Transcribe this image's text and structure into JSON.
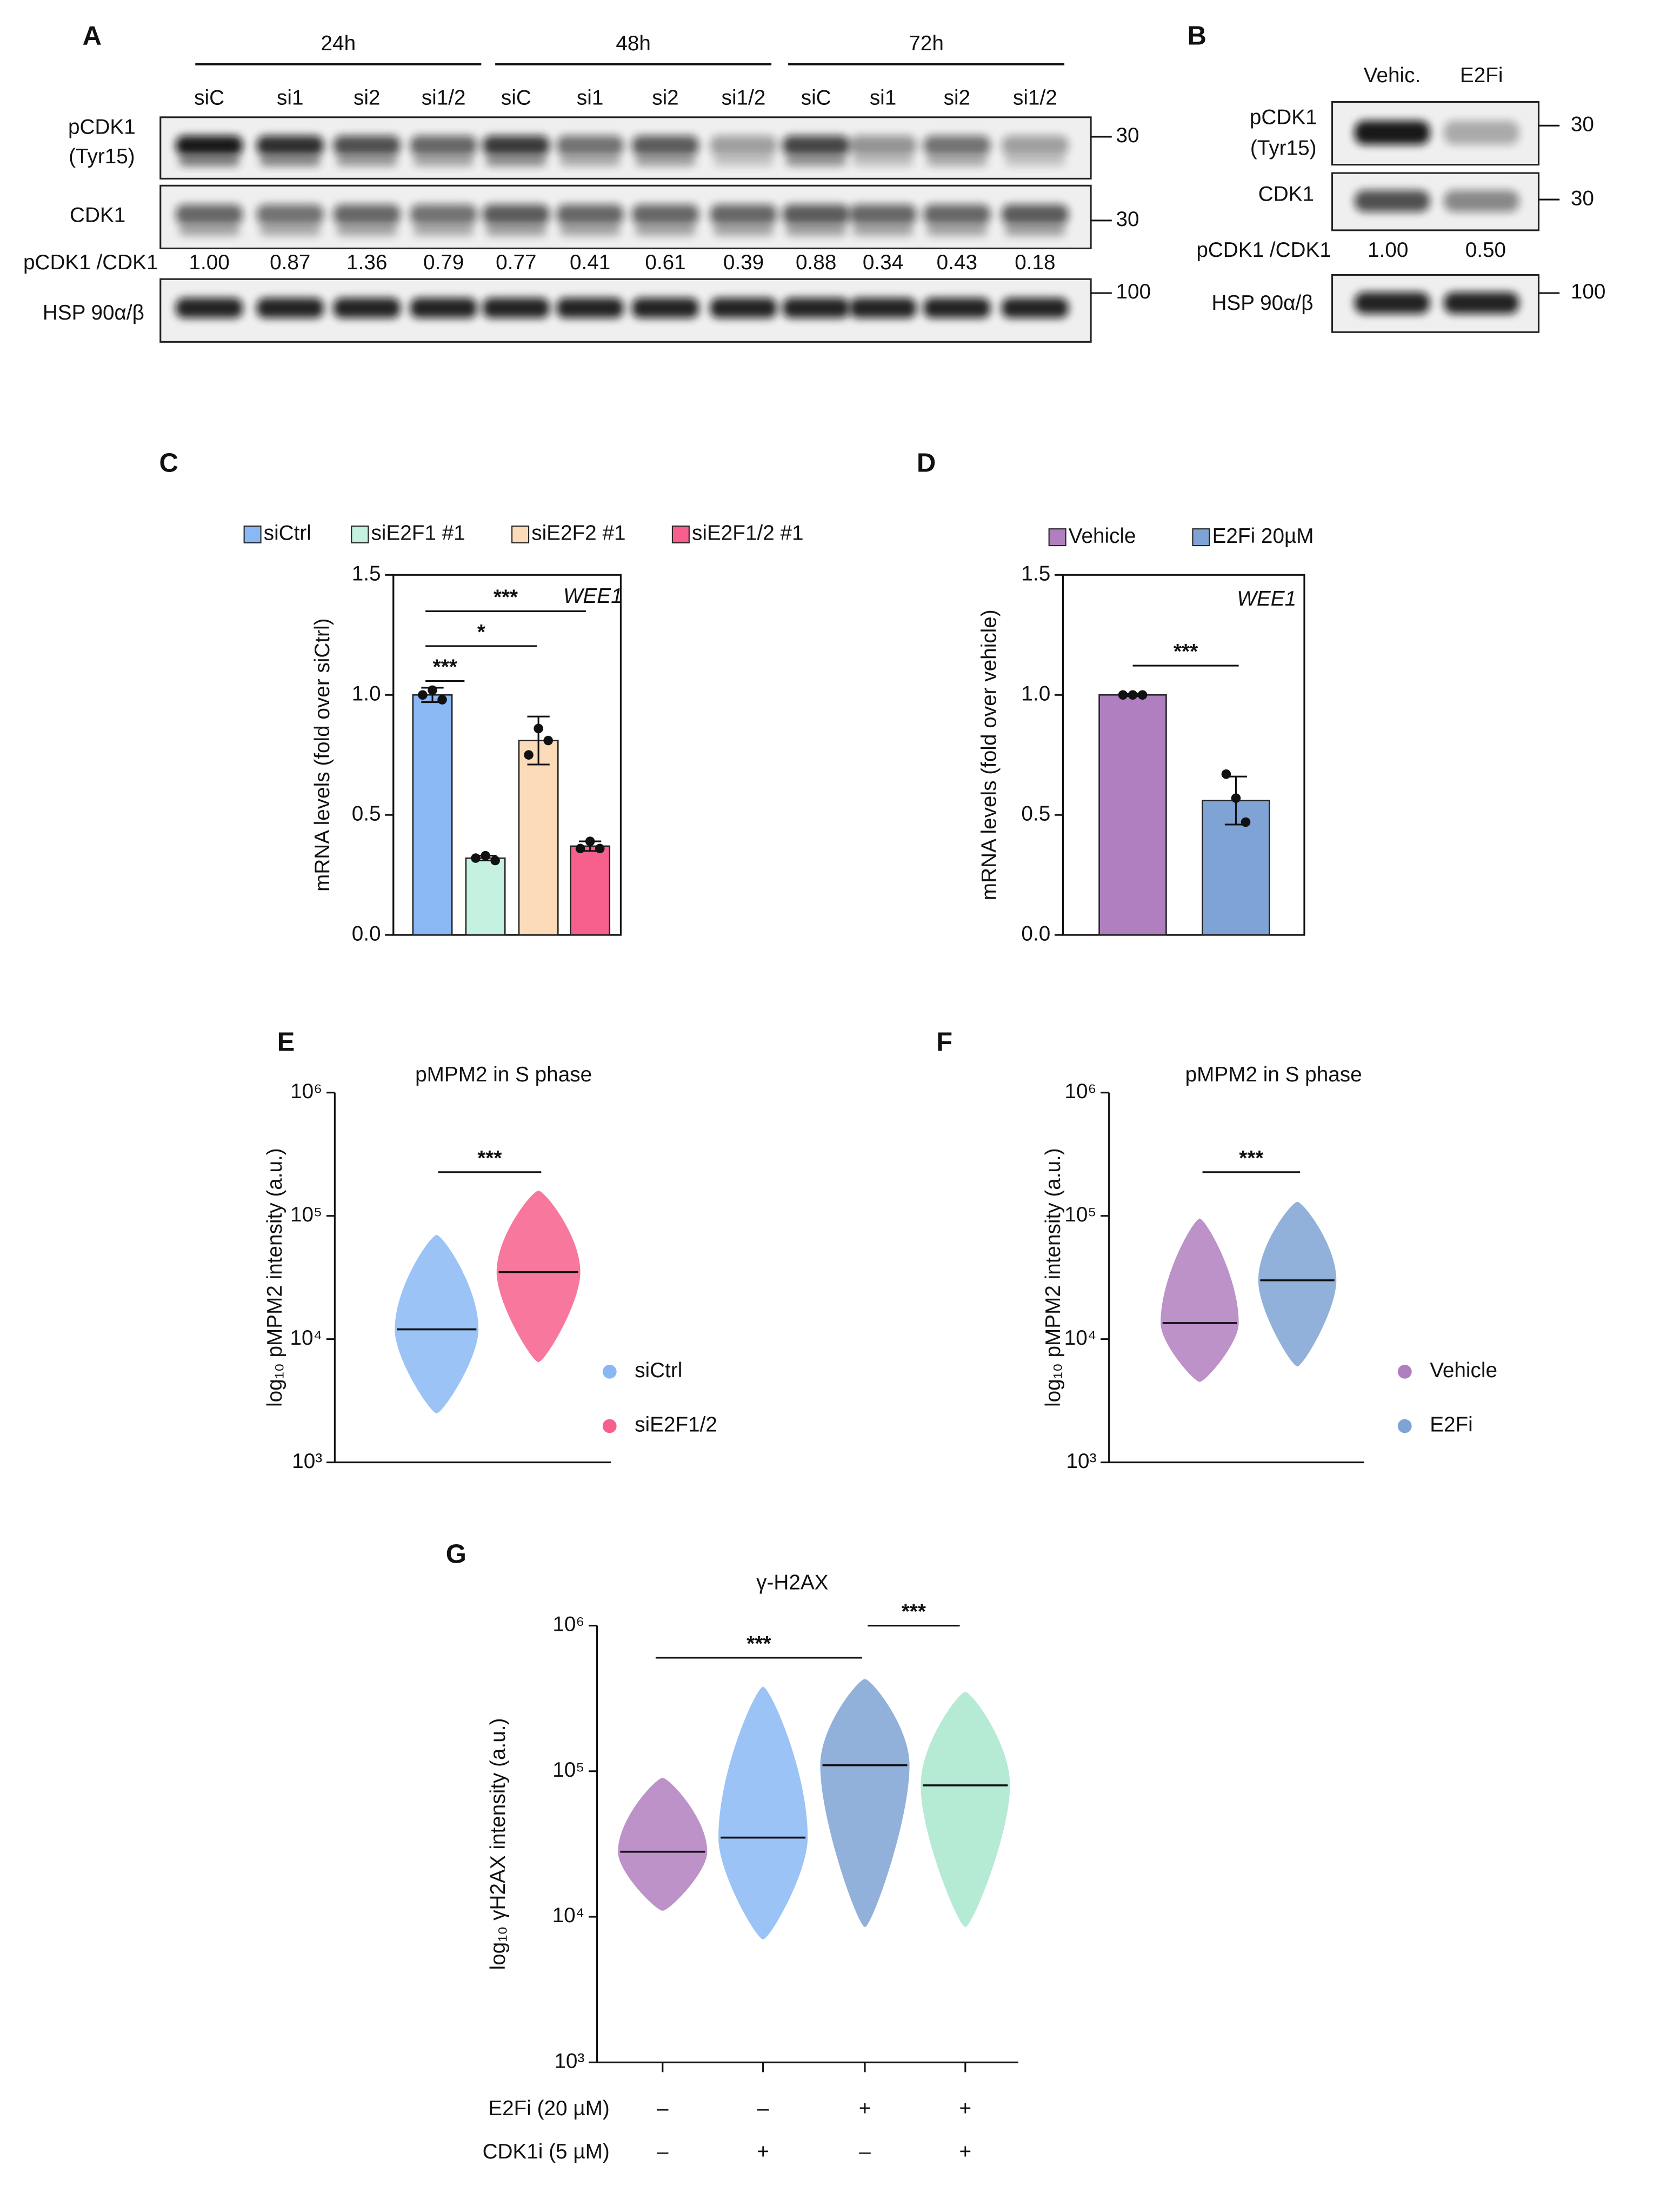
{
  "panel_labels": [
    "A",
    "B",
    "C",
    "D",
    "E",
    "F",
    "G"
  ],
  "blot_a": {
    "time_points": [
      "24h",
      "48h",
      "72h"
    ],
    "lanes": [
      "siC",
      "si1",
      "si2",
      "si1/2",
      "siC",
      "si1",
      "si2",
      "si1/2",
      "siC",
      "si1",
      "si2",
      "si1/2"
    ],
    "row_labels": [
      [
        "pCDK1",
        "(Tyr15)"
      ],
      [
        "CDK1"
      ],
      [
        "pCDK1 /CDK1"
      ],
      [
        "HSP 90α/β"
      ]
    ],
    "ratios": [
      "1.00",
      "0.87",
      "1.36",
      "0.79",
      "0.77",
      "0.41",
      "0.61",
      "0.39",
      "0.88",
      "0.34",
      "0.43",
      "0.18"
    ],
    "markers": [
      "30",
      "30",
      "100"
    ]
  },
  "blot_b": {
    "lanes": [
      "Vehic.",
      "E2Fi"
    ],
    "row_labels": [
      [
        "pCDK1",
        "(Tyr15)"
      ],
      [
        "CDK1"
      ],
      [
        "pCDK1 /CDK1"
      ],
      [
        "HSP 90α/β"
      ]
    ],
    "ratios": [
      "1.00",
      "0.50"
    ],
    "markers": [
      "30",
      "30",
      "100"
    ]
  },
  "chart_data": [
    {
      "type": "bar",
      "categories": [
        "siCtrl",
        "siE2F1 #1",
        "siE2F2 #1",
        "siE2F1/2 #1"
      ],
      "values": [
        1.0,
        0.32,
        0.81,
        0.37
      ],
      "errors": [
        0.03,
        0.01,
        0.1,
        0.02
      ],
      "points": [
        [
          1.0,
          1.02,
          0.98
        ],
        [
          0.32,
          0.33,
          0.31
        ],
        [
          0.75,
          0.86,
          0.81
        ],
        [
          0.36,
          0.39,
          0.36
        ]
      ],
      "colors": [
        "#8ab8f5",
        "#c5f2e0",
        "#fcdcb8",
        "#f7608c"
      ],
      "ylabel": "mRNA levels (fold over siCtrl)",
      "annotation": "WEE1",
      "significance": [
        "***",
        "*",
        "***"
      ],
      "ylim": [
        0,
        1.5
      ],
      "yticks": [
        {
          "value": 0,
          "label": "0.0"
        },
        {
          "value": 0.5,
          "label": "0.5"
        },
        {
          "value": 1,
          "label": "1.0"
        },
        {
          "value": 1.5,
          "label": "1.5"
        }
      ],
      "legend": "top"
    },
    {
      "type": "bar",
      "categories": [
        "Vehicle",
        "E2Fi 20µM"
      ],
      "values": [
        1.0,
        0.56
      ],
      "errors": [
        0.005,
        0.1
      ],
      "points": [
        [
          1.0,
          1.0,
          1.0
        ],
        [
          0.67,
          0.57,
          0.47
        ]
      ],
      "colors": [
        "#b07fc0",
        "#7fa3d4"
      ],
      "ylabel": "mRNA levels (fold over vehicle)",
      "annotation": "WEE1",
      "significance": [
        "***"
      ],
      "ylim": [
        0,
        1.5
      ],
      "yticks": [
        {
          "value": 0,
          "label": "0.0"
        },
        {
          "value": 0.5,
          "label": "0.5"
        },
        {
          "value": 1,
          "label": "1.0"
        },
        {
          "value": 1.5,
          "label": "1.5"
        }
      ],
      "legend": "top"
    },
    {
      "type": "swarm",
      "title": "pMPM2 in S phase",
      "ylabel": "log₁₀ pMPM2 intensity (a.u.)",
      "log_scale": true,
      "series": [
        {
          "name": "siCtrl",
          "color": "#8ab8f5",
          "median": 12000,
          "min": 2500,
          "max": 70000
        },
        {
          "name": "siE2F1/2",
          "color": "#f7608c",
          "median": 35000,
          "min": 6500,
          "max": 160000
        }
      ],
      "significance": [
        "***"
      ],
      "ylim": [
        1000,
        1000000
      ],
      "yticks": [
        {
          "value": 1000,
          "label": "10³"
        },
        {
          "value": 10000,
          "label": "10⁴"
        },
        {
          "value": 100000,
          "label": "10⁵"
        },
        {
          "value": 1000000,
          "label": "10⁶"
        }
      ],
      "legend": "right"
    },
    {
      "type": "swarm",
      "title": "pMPM2 in S phase",
      "ylabel": "log₁₀ pMPM2 intensity (a.u.)",
      "log_scale": true,
      "series": [
        {
          "name": "Vehicle",
          "color": "#b07fc0",
          "median": 13500,
          "min": 4500,
          "max": 95000
        },
        {
          "name": "E2Fi",
          "color": "#7fa3d4",
          "median": 30000,
          "min": 6000,
          "max": 130000
        }
      ],
      "significance": [
        "***"
      ],
      "ylim": [
        1000,
        1000000
      ],
      "yticks": [
        {
          "value": 1000,
          "label": "10³"
        },
        {
          "value": 10000,
          "label": "10⁴"
        },
        {
          "value": 100000,
          "label": "10⁵"
        },
        {
          "value": 1000000,
          "label": "10⁶"
        }
      ],
      "legend": "right"
    },
    {
      "type": "swarm",
      "title": "γ-H2AX",
      "ylabel": "log₁₀ γH2AX intensity (a.u.)",
      "log_scale": true,
      "series": [
        {
          "color": "#b07fc0",
          "median": 28000,
          "min": 11000,
          "max": 90000
        },
        {
          "color": "#8ab8f5",
          "median": 35000,
          "min": 7000,
          "max": 380000
        },
        {
          "color": "#7fa3d4",
          "median": 110000,
          "min": 8500,
          "max": 430000
        },
        {
          "color": "#a8e6cc",
          "median": 80000,
          "min": 8500,
          "max": 350000
        }
      ],
      "conditions": [
        {
          "label": "E2Fi (20 µM)",
          "values": [
            "–",
            "–",
            "+",
            "+"
          ]
        },
        {
          "label": "CDK1i (5 µM)",
          "values": [
            "–",
            "+",
            "–",
            "+"
          ]
        }
      ],
      "significance": [
        "***",
        "***"
      ],
      "ylim": [
        1000,
        1000000
      ],
      "yticks": [
        {
          "value": 1000,
          "label": "10³"
        },
        {
          "value": 10000,
          "label": "10⁴"
        },
        {
          "value": 100000,
          "label": "10⁵"
        },
        {
          "value": 1000000,
          "label": "10⁶"
        }
      ]
    }
  ]
}
